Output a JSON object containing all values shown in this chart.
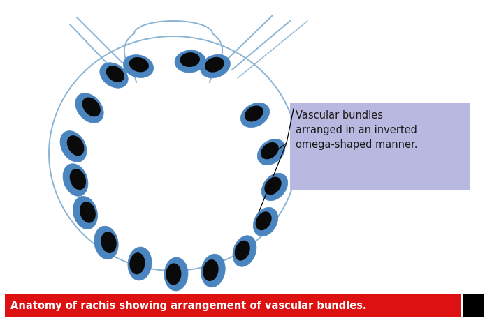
{
  "bg_color": "#ffffff",
  "outline_color": "#8ab4d4",
  "bundle_blue": "#4a85c0",
  "bundle_black": "#0a0a0a",
  "annotation_bg": "#b8b8e0",
  "annotation_text": "Vascular bundles\narranged in an inverted\nomega-shaped manner.",
  "caption_text": "Anatomy of rachis showing arrangement of vascular bundles.",
  "caption_bg": "#dd1111",
  "caption_fg": "#ffffff",
  "fig_w": 6.94,
  "fig_h": 4.66,
  "dpi": 100
}
